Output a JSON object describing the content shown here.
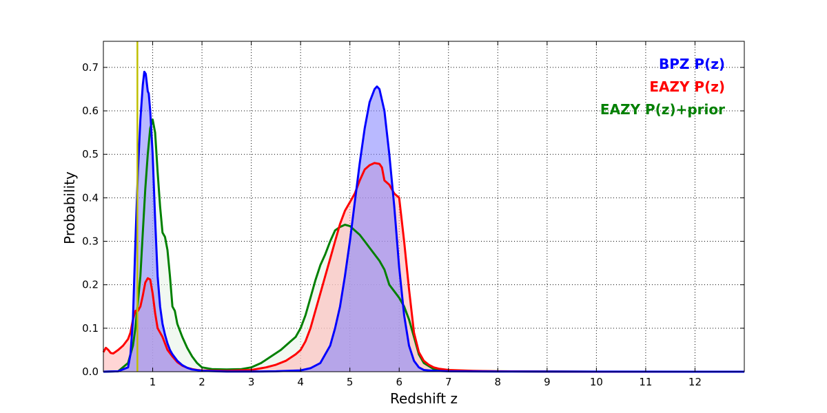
{
  "chart_data": {
    "type": "area",
    "title": "",
    "xlabel": "Redshift z",
    "ylabel": "Probability",
    "xlim": [
      0,
      13
    ],
    "ylim": [
      0,
      0.76
    ],
    "xticks": [
      1,
      2,
      3,
      4,
      5,
      6,
      7,
      8,
      9,
      10,
      11,
      12
    ],
    "xtick_labels": [
      "1",
      "2",
      "3",
      "4",
      "5",
      "6",
      "7",
      "8",
      "9",
      "10",
      "11",
      "12"
    ],
    "yticks": [
      0.0,
      0.1,
      0.2,
      0.3,
      0.4,
      0.5,
      0.6,
      0.7
    ],
    "ytick_labels": [
      "0.0",
      "0.1",
      "0.2",
      "0.3",
      "0.4",
      "0.5",
      "0.6",
      "0.7"
    ],
    "grid": true,
    "legend_position": "top-right",
    "reference_line": {
      "x": 0.69,
      "color": "#bfbf00"
    },
    "series": [
      {
        "name": "EAZY P(z)+prior",
        "color": "#008000",
        "fill": "#e6f2e6",
        "x": [
          0,
          0.3,
          0.5,
          0.6,
          0.65,
          0.7,
          0.75,
          0.8,
          0.85,
          0.9,
          0.95,
          1.0,
          1.05,
          1.1,
          1.15,
          1.2,
          1.25,
          1.3,
          1.35,
          1.4,
          1.45,
          1.5,
          1.6,
          1.7,
          1.8,
          1.9,
          2.0,
          2.2,
          2.5,
          2.8,
          3.0,
          3.2,
          3.4,
          3.6,
          3.8,
          3.9,
          4.0,
          4.1,
          4.2,
          4.3,
          4.4,
          4.5,
          4.6,
          4.7,
          4.8,
          4.9,
          5.0,
          5.1,
          5.2,
          5.3,
          5.4,
          5.5,
          5.6,
          5.7,
          5.8,
          5.9,
          6.0,
          6.1,
          6.2,
          6.3,
          6.4,
          6.5,
          6.7,
          7.0,
          8.0,
          10.0,
          13.0
        ],
        "y": [
          0,
          0.001,
          0.02,
          0.06,
          0.1,
          0.16,
          0.22,
          0.32,
          0.42,
          0.5,
          0.56,
          0.58,
          0.55,
          0.46,
          0.38,
          0.32,
          0.31,
          0.28,
          0.22,
          0.15,
          0.14,
          0.11,
          0.08,
          0.055,
          0.035,
          0.02,
          0.01,
          0.006,
          0.005,
          0.006,
          0.01,
          0.02,
          0.035,
          0.05,
          0.07,
          0.08,
          0.1,
          0.13,
          0.17,
          0.21,
          0.245,
          0.27,
          0.3,
          0.325,
          0.333,
          0.338,
          0.335,
          0.325,
          0.315,
          0.3,
          0.285,
          0.27,
          0.255,
          0.235,
          0.2,
          0.185,
          0.17,
          0.15,
          0.12,
          0.08,
          0.04,
          0.02,
          0.006,
          0.002,
          0.001,
          0,
          0
        ]
      },
      {
        "name": "EAZY P(z)",
        "color": "#ff0000",
        "fill": "#ffb3b3",
        "x": [
          0,
          0.05,
          0.1,
          0.15,
          0.2,
          0.3,
          0.4,
          0.5,
          0.55,
          0.6,
          0.65,
          0.7,
          0.75,
          0.8,
          0.85,
          0.9,
          0.95,
          1.0,
          1.05,
          1.1,
          1.15,
          1.2,
          1.3,
          1.4,
          1.5,
          1.6,
          1.7,
          1.8,
          1.9,
          2.0,
          2.5,
          3.0,
          3.3,
          3.5,
          3.7,
          3.9,
          4.0,
          4.1,
          4.2,
          4.3,
          4.4,
          4.5,
          4.6,
          4.7,
          4.8,
          4.9,
          5.0,
          5.1,
          5.2,
          5.3,
          5.4,
          5.5,
          5.6,
          5.65,
          5.7,
          5.8,
          5.9,
          6.0,
          6.1,
          6.2,
          6.3,
          6.4,
          6.5,
          6.6,
          6.7,
          6.8,
          7.0,
          7.5,
          8.0,
          10.0,
          13.0
        ],
        "y": [
          0.045,
          0.055,
          0.05,
          0.043,
          0.042,
          0.05,
          0.06,
          0.075,
          0.09,
          0.12,
          0.14,
          0.14,
          0.15,
          0.175,
          0.205,
          0.215,
          0.212,
          0.18,
          0.135,
          0.1,
          0.09,
          0.08,
          0.05,
          0.035,
          0.022,
          0.014,
          0.009,
          0.006,
          0.004,
          0.003,
          0.002,
          0.004,
          0.01,
          0.016,
          0.025,
          0.04,
          0.05,
          0.07,
          0.1,
          0.14,
          0.18,
          0.22,
          0.26,
          0.3,
          0.34,
          0.37,
          0.39,
          0.41,
          0.44,
          0.465,
          0.475,
          0.48,
          0.478,
          0.47,
          0.44,
          0.43,
          0.41,
          0.4,
          0.3,
          0.19,
          0.09,
          0.045,
          0.025,
          0.016,
          0.01,
          0.007,
          0.004,
          0.002,
          0.001,
          0,
          0
        ]
      },
      {
        "name": "BPZ P(z)",
        "color": "#0000ff",
        "fill": "#8080ff",
        "x": [
          0,
          0.3,
          0.5,
          0.55,
          0.6,
          0.65,
          0.7,
          0.75,
          0.8,
          0.83,
          0.86,
          0.9,
          0.92,
          0.95,
          1.0,
          1.05,
          1.1,
          1.15,
          1.2,
          1.25,
          1.3,
          1.35,
          1.4,
          1.5,
          1.6,
          1.7,
          1.8,
          2.0,
          2.5,
          3.0,
          3.5,
          4.0,
          4.2,
          4.4,
          4.6,
          4.7,
          4.8,
          4.9,
          5.0,
          5.1,
          5.2,
          5.3,
          5.4,
          5.5,
          5.55,
          5.6,
          5.7,
          5.8,
          5.9,
          6.0,
          6.1,
          6.2,
          6.3,
          6.4,
          6.5,
          6.7,
          7.0,
          8.0,
          10.0,
          13.0
        ],
        "y": [
          0,
          0.001,
          0.01,
          0.04,
          0.12,
          0.3,
          0.46,
          0.58,
          0.66,
          0.69,
          0.685,
          0.645,
          0.64,
          0.6,
          0.5,
          0.35,
          0.22,
          0.15,
          0.11,
          0.085,
          0.065,
          0.05,
          0.04,
          0.025,
          0.015,
          0.009,
          0.005,
          0.002,
          0.0005,
          0.0003,
          0.001,
          0.003,
          0.008,
          0.02,
          0.06,
          0.1,
          0.15,
          0.22,
          0.3,
          0.39,
          0.48,
          0.56,
          0.62,
          0.65,
          0.656,
          0.65,
          0.6,
          0.5,
          0.38,
          0.24,
          0.13,
          0.06,
          0.025,
          0.01,
          0.004,
          0.002,
          0.001,
          0.0005,
          0.0002,
          0
        ]
      }
    ],
    "legend": [
      {
        "label": "BPZ P(z)",
        "color": "#0000ff"
      },
      {
        "label": "EAZY P(z)",
        "color": "#ff0000"
      },
      {
        "label": "EAZY P(z)+prior",
        "color": "#008000"
      }
    ]
  }
}
